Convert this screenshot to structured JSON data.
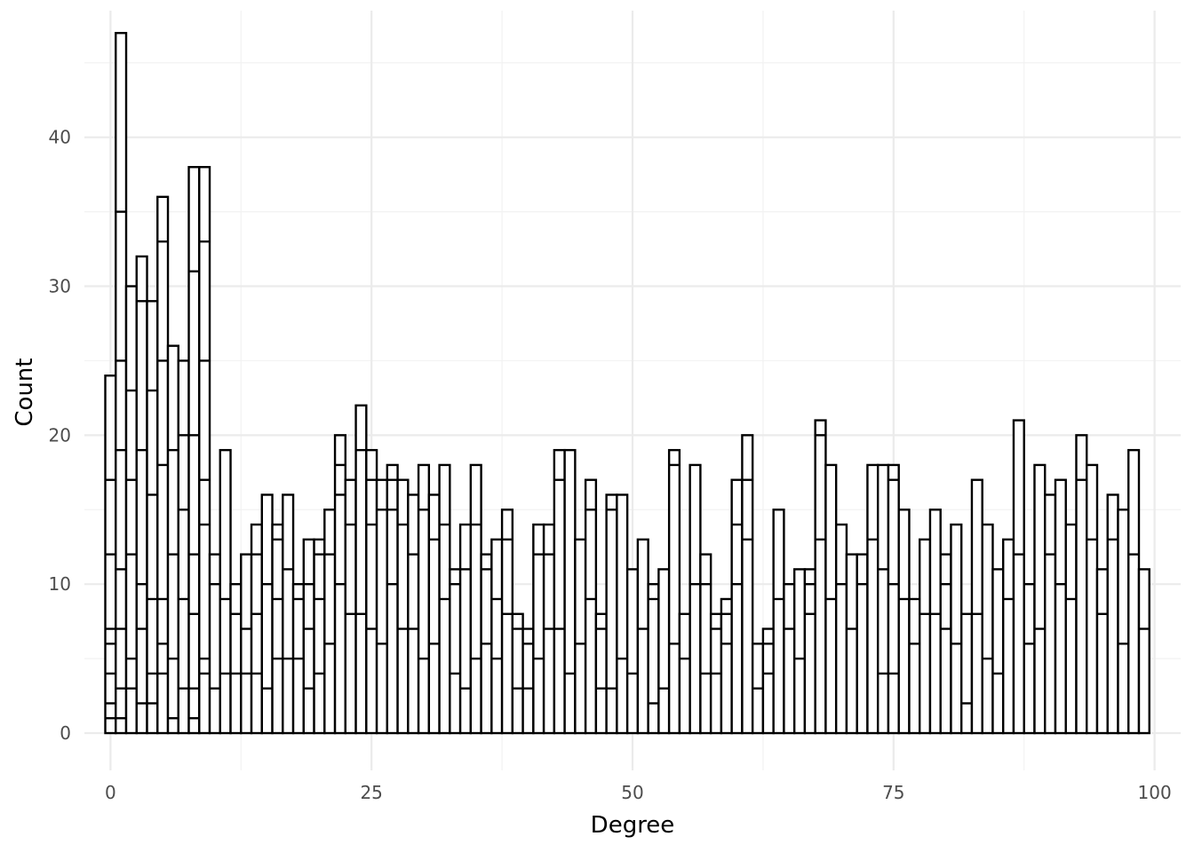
{
  "chart_data": {
    "type": "bar",
    "stacked": true,
    "title": "",
    "xlabel": "Degree",
    "ylabel": "Count",
    "xlim": [
      -2.5,
      102.5
    ],
    "ylim": [
      -2.5,
      48.5
    ],
    "x_ticks": [
      0,
      25,
      50,
      75,
      100
    ],
    "y_ticks": [
      0,
      10,
      20,
      30,
      40
    ],
    "grid": true,
    "legend": "none",
    "bin_width": 1,
    "bins": [
      {
        "x": 0,
        "bounds": [
          1,
          2,
          4,
          6,
          7,
          12,
          17,
          24
        ]
      },
      {
        "x": 1,
        "bounds": [
          1,
          3,
          7,
          11,
          19,
          25,
          35,
          47
        ]
      },
      {
        "x": 2,
        "bounds": [
          3,
          5,
          12,
          17,
          23,
          30
        ]
      },
      {
        "x": 3,
        "bounds": [
          2,
          7,
          10,
          19,
          29,
          32
        ]
      },
      {
        "x": 4,
        "bounds": [
          2,
          4,
          9,
          16,
          23,
          29
        ]
      },
      {
        "x": 5,
        "bounds": [
          4,
          6,
          9,
          18,
          25,
          33,
          36
        ]
      },
      {
        "x": 6,
        "bounds": [
          1,
          5,
          12,
          19,
          26
        ]
      },
      {
        "x": 7,
        "bounds": [
          3,
          9,
          15,
          20,
          25
        ]
      },
      {
        "x": 8,
        "bounds": [
          1,
          3,
          8,
          12,
          20,
          31,
          38
        ]
      },
      {
        "x": 9,
        "bounds": [
          4,
          5,
          14,
          17,
          25,
          33,
          38
        ]
      },
      {
        "x": 10,
        "bounds": [
          3,
          10,
          12
        ]
      },
      {
        "x": 11,
        "bounds": [
          4,
          9,
          19
        ]
      },
      {
        "x": 12,
        "bounds": [
          4,
          8,
          10
        ]
      },
      {
        "x": 13,
        "bounds": [
          4,
          7,
          12
        ]
      },
      {
        "x": 14,
        "bounds": [
          4,
          8,
          12,
          14
        ]
      },
      {
        "x": 15,
        "bounds": [
          3,
          10,
          16
        ]
      },
      {
        "x": 16,
        "bounds": [
          5,
          9,
          13,
          14
        ]
      },
      {
        "x": 17,
        "bounds": [
          5,
          11,
          16
        ]
      },
      {
        "x": 18,
        "bounds": [
          5,
          9,
          10
        ]
      },
      {
        "x": 19,
        "bounds": [
          3,
          7,
          10,
          13
        ]
      },
      {
        "x": 20,
        "bounds": [
          4,
          9,
          12,
          13
        ]
      },
      {
        "x": 21,
        "bounds": [
          6,
          12,
          15
        ]
      },
      {
        "x": 22,
        "bounds": [
          10,
          16,
          18,
          20
        ]
      },
      {
        "x": 23,
        "bounds": [
          8,
          14,
          17
        ]
      },
      {
        "x": 24,
        "bounds": [
          8,
          19,
          22
        ]
      },
      {
        "x": 25,
        "bounds": [
          7,
          14,
          17,
          19
        ]
      },
      {
        "x": 26,
        "bounds": [
          6,
          15,
          17
        ]
      },
      {
        "x": 27,
        "bounds": [
          10,
          15,
          17,
          18
        ]
      },
      {
        "x": 28,
        "bounds": [
          7,
          14,
          17
        ]
      },
      {
        "x": 29,
        "bounds": [
          7,
          12,
          16
        ]
      },
      {
        "x": 30,
        "bounds": [
          5,
          15,
          18
        ]
      },
      {
        "x": 31,
        "bounds": [
          6,
          13,
          16
        ]
      },
      {
        "x": 32,
        "bounds": [
          9,
          14,
          18
        ]
      },
      {
        "x": 33,
        "bounds": [
          4,
          10,
          11
        ]
      },
      {
        "x": 34,
        "bounds": [
          3,
          11,
          14
        ]
      },
      {
        "x": 35,
        "bounds": [
          5,
          14,
          18
        ]
      },
      {
        "x": 36,
        "bounds": [
          6,
          11,
          12
        ]
      },
      {
        "x": 37,
        "bounds": [
          5,
          9,
          13
        ]
      },
      {
        "x": 38,
        "bounds": [
          8,
          13,
          15
        ]
      },
      {
        "x": 39,
        "bounds": [
          3,
          7,
          8
        ]
      },
      {
        "x": 40,
        "bounds": [
          3,
          6,
          7
        ]
      },
      {
        "x": 41,
        "bounds": [
          5,
          12,
          14
        ]
      },
      {
        "x": 42,
        "bounds": [
          7,
          12,
          14
        ]
      },
      {
        "x": 43,
        "bounds": [
          7,
          17,
          19
        ]
      },
      {
        "x": 44,
        "bounds": [
          4,
          19
        ]
      },
      {
        "x": 45,
        "bounds": [
          6,
          13
        ]
      },
      {
        "x": 46,
        "bounds": [
          9,
          15,
          17
        ]
      },
      {
        "x": 47,
        "bounds": [
          3,
          7,
          8
        ]
      },
      {
        "x": 48,
        "bounds": [
          3,
          15,
          16
        ]
      },
      {
        "x": 49,
        "bounds": [
          5,
          16
        ]
      },
      {
        "x": 50,
        "bounds": [
          4,
          11
        ]
      },
      {
        "x": 51,
        "bounds": [
          7,
          13
        ]
      },
      {
        "x": 52,
        "bounds": [
          2,
          9,
          10
        ]
      },
      {
        "x": 53,
        "bounds": [
          3,
          11
        ]
      },
      {
        "x": 54,
        "bounds": [
          6,
          18,
          19
        ]
      },
      {
        "x": 55,
        "bounds": [
          5,
          8
        ]
      },
      {
        "x": 56,
        "bounds": [
          10,
          18
        ]
      },
      {
        "x": 57,
        "bounds": [
          4,
          10,
          12
        ]
      },
      {
        "x": 58,
        "bounds": [
          4,
          7,
          8
        ]
      },
      {
        "x": 59,
        "bounds": [
          6,
          8,
          9
        ]
      },
      {
        "x": 60,
        "bounds": [
          10,
          14,
          17
        ]
      },
      {
        "x": 61,
        "bounds": [
          13,
          17,
          20
        ]
      },
      {
        "x": 62,
        "bounds": [
          3,
          6
        ]
      },
      {
        "x": 63,
        "bounds": [
          4,
          6,
          7
        ]
      },
      {
        "x": 64,
        "bounds": [
          9,
          15
        ]
      },
      {
        "x": 65,
        "bounds": [
          7,
          10
        ]
      },
      {
        "x": 66,
        "bounds": [
          5,
          11
        ]
      },
      {
        "x": 67,
        "bounds": [
          8,
          10,
          11
        ]
      },
      {
        "x": 68,
        "bounds": [
          13,
          20,
          21
        ]
      },
      {
        "x": 69,
        "bounds": [
          9,
          18
        ]
      },
      {
        "x": 70,
        "bounds": [
          10,
          14
        ]
      },
      {
        "x": 71,
        "bounds": [
          7,
          12
        ]
      },
      {
        "x": 72,
        "bounds": [
          10,
          12
        ]
      },
      {
        "x": 73,
        "bounds": [
          13,
          18
        ]
      },
      {
        "x": 74,
        "bounds": [
          4,
          11,
          18
        ]
      },
      {
        "x": 75,
        "bounds": [
          4,
          10,
          17,
          18
        ]
      },
      {
        "x": 76,
        "bounds": [
          9,
          15
        ]
      },
      {
        "x": 77,
        "bounds": [
          6,
          9
        ]
      },
      {
        "x": 78,
        "bounds": [
          8,
          13
        ]
      },
      {
        "x": 79,
        "bounds": [
          8,
          15
        ]
      },
      {
        "x": 80,
        "bounds": [
          7,
          10,
          12
        ]
      },
      {
        "x": 81,
        "bounds": [
          6,
          14
        ]
      },
      {
        "x": 82,
        "bounds": [
          2,
          8
        ]
      },
      {
        "x": 83,
        "bounds": [
          8,
          17
        ]
      },
      {
        "x": 84,
        "bounds": [
          5,
          14
        ]
      },
      {
        "x": 85,
        "bounds": [
          4,
          11
        ]
      },
      {
        "x": 86,
        "bounds": [
          9,
          13
        ]
      },
      {
        "x": 87,
        "bounds": [
          12,
          21
        ]
      },
      {
        "x": 88,
        "bounds": [
          6,
          10
        ]
      },
      {
        "x": 89,
        "bounds": [
          7,
          18
        ]
      },
      {
        "x": 90,
        "bounds": [
          12,
          16
        ]
      },
      {
        "x": 91,
        "bounds": [
          10,
          17
        ]
      },
      {
        "x": 92,
        "bounds": [
          9,
          14
        ]
      },
      {
        "x": 93,
        "bounds": [
          17,
          20
        ]
      },
      {
        "x": 94,
        "bounds": [
          13,
          18
        ]
      },
      {
        "x": 95,
        "bounds": [
          8,
          11
        ]
      },
      {
        "x": 96,
        "bounds": [
          13,
          16
        ]
      },
      {
        "x": 97,
        "bounds": [
          6,
          15
        ]
      },
      {
        "x": 98,
        "bounds": [
          12,
          19
        ]
      },
      {
        "x": 99,
        "bounds": [
          7,
          11
        ]
      }
    ]
  }
}
